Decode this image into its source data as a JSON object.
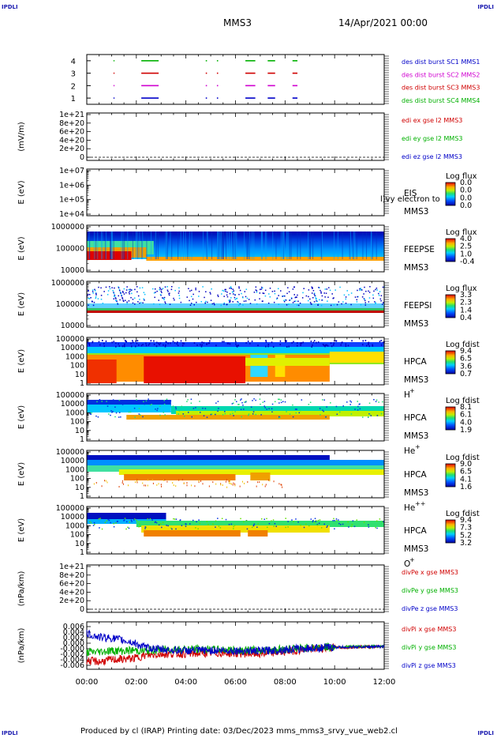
{
  "header": {
    "corner_tl": "IPDLI",
    "corner_tr": "IPDLI",
    "corner_bl": "IPDLI",
    "corner_br": "IPDLI",
    "spacecraft": "MMS3",
    "date": "14/Apr/2021 00:00"
  },
  "footer": {
    "text": "Produced by cl (IRAP)    Printing date: 03/Dec/2023    mms_mms3_srvy_vue_web2.cl"
  },
  "colors": {
    "blue": "#0000c8",
    "magenta": "#d000d0",
    "red": "#d00000",
    "green": "#00b000"
  },
  "chart_data": [
    {
      "type": "line",
      "panel": "burst",
      "ylim": [
        0.5,
        4.5
      ],
      "y_ticks": [
        "1",
        "2",
        "3",
        "4"
      ],
      "legend": [
        {
          "label": "des dist burst SC1 MMS1",
          "color": "#0000c8"
        },
        {
          "label": "des dist burst SC2 MMS2",
          "color": "#d000d0"
        },
        {
          "label": "des dist burst SC3 MMS3",
          "color": "#d00000"
        },
        {
          "label": "des dist burst SC4 MMS4",
          "color": "#00b000"
        }
      ],
      "series": [
        {
          "name": "des dist burst SC1 MMS1",
          "level": 1,
          "intervals": [
            [
              1.08,
              1.1
            ],
            [
              2.2,
              2.9
            ],
            [
              4.8,
              4.85
            ],
            [
              5.25,
              5.3
            ],
            [
              6.4,
              6.8
            ],
            [
              7.3,
              7.6
            ],
            [
              8.3,
              8.5
            ]
          ]
        },
        {
          "name": "des dist burst SC2 MMS2",
          "level": 2,
          "intervals": [
            [
              1.08,
              1.1
            ],
            [
              2.2,
              2.9
            ],
            [
              4.8,
              4.85
            ],
            [
              5.25,
              5.3
            ],
            [
              6.4,
              6.8
            ],
            [
              7.3,
              7.6
            ],
            [
              8.3,
              8.5
            ]
          ]
        },
        {
          "name": "des dist burst SC3 MMS3",
          "level": 3,
          "intervals": [
            [
              1.08,
              1.1
            ],
            [
              2.2,
              2.9
            ],
            [
              4.8,
              4.85
            ],
            [
              5.25,
              5.3
            ],
            [
              6.4,
              6.8
            ],
            [
              7.3,
              7.6
            ],
            [
              8.3,
              8.5
            ]
          ]
        },
        {
          "name": "des dist burst SC4 MMS4",
          "level": 4,
          "intervals": [
            [
              1.08,
              1.1
            ],
            [
              2.2,
              2.9
            ],
            [
              4.8,
              4.85
            ],
            [
              5.25,
              5.3
            ],
            [
              6.4,
              6.8
            ],
            [
              7.3,
              7.6
            ],
            [
              8.3,
              8.5
            ]
          ]
        }
      ]
    },
    {
      "type": "line",
      "panel": "edi",
      "ylabel": "(mV/m)",
      "y_ticks": [
        "1e+21",
        "8e+20",
        "6e+20",
        "4e+20",
        "2e+20",
        "0"
      ],
      "legend": [
        {
          "label": "edi ex gse l2 MMS3",
          "color": "#d00000"
        },
        {
          "label": "edi ey gse l2 MMS3",
          "color": "#00b000"
        },
        {
          "label": "edi ez gse l2 MMS3",
          "color": "#0000c8"
        }
      ]
    },
    {
      "type": "heatmap",
      "panel": "eis",
      "ylabel": "E (eV)",
      "y_ticks": [
        "1e+07",
        "1e+06",
        "1e+05",
        "1e+04"
      ],
      "instrument": "EIS",
      "overlay_text": "l)vy electron to",
      "spacecraft": "MMS3",
      "colorbar_title": "Log flux",
      "colorbar_ticks": [
        "0.0",
        "0.0",
        "0.0",
        "0.0"
      ]
    },
    {
      "type": "heatmap",
      "panel": "feepse",
      "ylabel": "E (eV)",
      "y_ticks": [
        "1000000",
        "100000",
        "10000"
      ],
      "instrument": "FEEPSE",
      "spacecraft": "MMS3",
      "colorbar_title": "Log flux",
      "colorbar_ticks": [
        "4.0",
        "2.5",
        "1.0",
        "-0.4"
      ]
    },
    {
      "type": "heatmap",
      "panel": "feepsi",
      "ylabel": "E (eV)",
      "y_ticks": [
        "1000000",
        "100000",
        "10000"
      ],
      "instrument": "FEEPSI",
      "spacecraft": "MMS3",
      "colorbar_title": "Log flux",
      "colorbar_ticks": [
        "3.3",
        "2.3",
        "1.4",
        "0.4"
      ]
    },
    {
      "type": "heatmap",
      "panel": "hpca-h",
      "ylabel": "E (eV)",
      "y_ticks": [
        "100000",
        "10000",
        "1000",
        "100",
        "10",
        "1"
      ],
      "instrument": "HPCA",
      "spacecraft": "MMS3",
      "species": "H",
      "species_sup": "+",
      "colorbar_title": "Log fdist",
      "colorbar_ticks": [
        "9.4",
        "6.5",
        "3.6",
        "0.7"
      ]
    },
    {
      "type": "heatmap",
      "panel": "hpca-he",
      "ylabel": "E (eV)",
      "y_ticks": [
        "100000",
        "10000",
        "1000",
        "100",
        "10",
        "1"
      ],
      "instrument": "HPCA",
      "spacecraft": "MMS3",
      "species": "He",
      "species_sup": "+",
      "colorbar_title": "Log fdist",
      "colorbar_ticks": [
        "8.1",
        "6.1",
        "4.0",
        "1.9"
      ]
    },
    {
      "type": "heatmap",
      "panel": "hpca-hepp",
      "ylabel": "E (eV)",
      "y_ticks": [
        "100000",
        "10000",
        "1000",
        "100",
        "10",
        "1"
      ],
      "instrument": "HPCA",
      "spacecraft": "MMS3",
      "species": "He",
      "species_sup": "++",
      "colorbar_title": "Log fdist",
      "colorbar_ticks": [
        "9.0",
        "6.5",
        "4.1",
        "1.6"
      ]
    },
    {
      "type": "heatmap",
      "panel": "hpca-o",
      "ylabel": "E (eV)",
      "y_ticks": [
        "100000",
        "10000",
        "1000",
        "100",
        "10",
        "1"
      ],
      "instrument": "HPCA",
      "spacecraft": "MMS3",
      "species": "O",
      "species_sup": "+",
      "colorbar_title": "Log fdist",
      "colorbar_ticks": [
        "9.4",
        "7.3",
        "5.2",
        "3.2"
      ]
    },
    {
      "type": "line",
      "panel": "divpe",
      "ylabel": "(nPa/km)",
      "y_ticks": [
        "1e+21",
        "8e+20",
        "6e+20",
        "4e+20",
        "2e+20",
        "0"
      ],
      "legend": [
        {
          "label": "divPe x gse MMS3",
          "color": "#d00000"
        },
        {
          "label": "divPe y gse MMS3",
          "color": "#00b000"
        },
        {
          "label": "divPe z gse MMS3",
          "color": "#0000c8"
        }
      ]
    },
    {
      "type": "line",
      "panel": "divpi",
      "ylabel": "(nPa/km)",
      "y_ticks": [
        "0.006",
        "0.004",
        "0.002",
        "0.000",
        "-0.000",
        "-0.002",
        "-0.004",
        "-0.006"
      ],
      "ylim": [
        -0.007,
        0.007
      ],
      "legend": [
        {
          "label": "divPi x gse MMS3",
          "color": "#d00000"
        },
        {
          "label": "divPi y gse MMS3",
          "color": "#00b000"
        },
        {
          "label": "divPi z gse MMS3",
          "color": "#0000c8"
        }
      ],
      "series": [
        {
          "name": "divPi z gse MMS3",
          "x": [
            0,
            0.5,
            1,
            1.5,
            1.9,
            2.3,
            3,
            4,
            5,
            6,
            7,
            8,
            9,
            10,
            11,
            12
          ],
          "y": [
            0.0035,
            0.0025,
            0.0022,
            0.0015,
            0.0008,
            -0.0005,
            -0.0012,
            -0.0015,
            -0.0014,
            -0.0015,
            -0.0016,
            -0.0012,
            -0.0008,
            -0.0005,
            -0.0004,
            -0.0003
          ]
        },
        {
          "name": "divPi y gse MMS3",
          "x": [
            0,
            0.5,
            1,
            1.5,
            1.9,
            2.3,
            3,
            4,
            5,
            6,
            7,
            8,
            9,
            10,
            11,
            12
          ],
          "y": [
            -0.002,
            -0.0018,
            -0.0015,
            -0.0016,
            -0.0014,
            -0.0016,
            -0.0012,
            -0.001,
            -0.0012,
            -0.0013,
            -0.0014,
            -0.001,
            -0.0006,
            -0.0004,
            -0.0003,
            -0.0002
          ]
        },
        {
          "name": "divPi x gse MMS3",
          "x": [
            0,
            0.5,
            1,
            1.5,
            1.9,
            2.3,
            3,
            4,
            5,
            6,
            7,
            8,
            9,
            10,
            11,
            12
          ],
          "y": [
            -0.0045,
            -0.0048,
            -0.0042,
            -0.004,
            -0.0038,
            -0.003,
            -0.0025,
            -0.0024,
            -0.0022,
            -0.0023,
            -0.0025,
            -0.0018,
            -0.001,
            -0.0006,
            -0.0004,
            -0.0003
          ]
        }
      ]
    }
  ],
  "time_axis": {
    "labels": [
      "00:00",
      "02:00",
      "04:00",
      "06:00",
      "08:00",
      "10:00",
      "12:00"
    ],
    "range": [
      0,
      12
    ]
  }
}
